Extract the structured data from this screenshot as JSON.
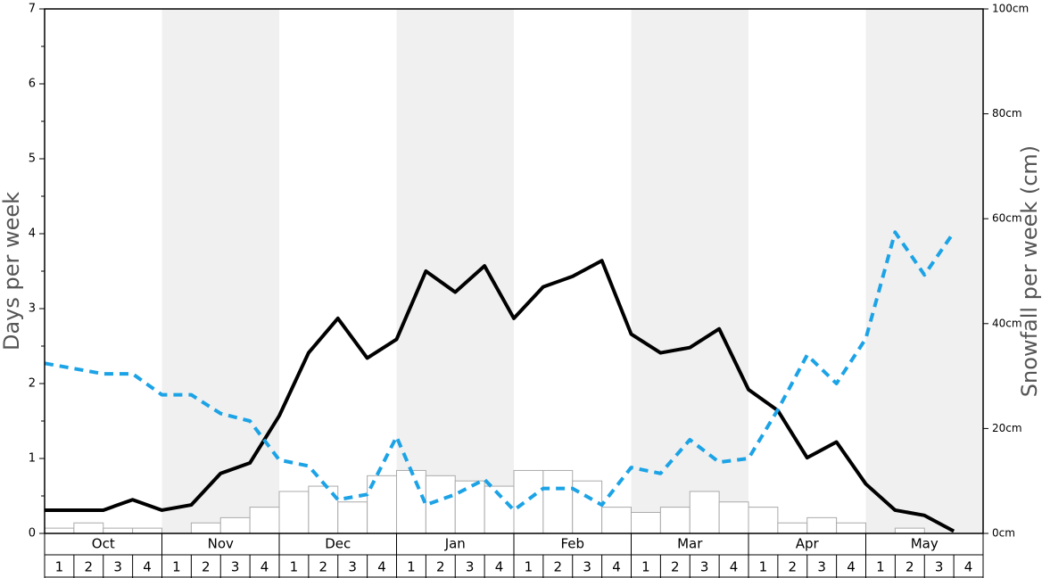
{
  "chart_data": {
    "type": "combo",
    "y_label": "Days per week",
    "y2_label": "Snowfall per week (cm)",
    "groups": [
      "Oct",
      "Nov",
      "Dec",
      "Jan",
      "Feb",
      "Mar",
      "Apr",
      "May"
    ],
    "categories": [
      1,
      2,
      3,
      4,
      1,
      2,
      3,
      4,
      1,
      2,
      3,
      4,
      1,
      2,
      3,
      4,
      1,
      2,
      3,
      4,
      1,
      2,
      3,
      4,
      1,
      2,
      3,
      4,
      1,
      2,
      3,
      4
    ],
    "ylim": [
      0,
      7
    ],
    "yticks": [
      0,
      1,
      2,
      3,
      4,
      5,
      6,
      7
    ],
    "y2lim": [
      0,
      100
    ],
    "y2ticks": [
      {
        "value": 0,
        "label": "0cm"
      },
      {
        "value": 20,
        "label": "20cm"
      },
      {
        "value": 40,
        "label": "40cm"
      },
      {
        "value": 60,
        "label": "60cm"
      },
      {
        "value": 80,
        "label": "80cm"
      },
      {
        "value": 100,
        "label": "100cm"
      }
    ],
    "series": [
      {
        "type": "bar",
        "axis": "y2",
        "color": "#ffffff",
        "values": [
          1,
          2,
          1,
          1,
          0,
          2,
          3,
          5,
          8,
          9,
          6,
          11,
          12,
          11,
          10,
          9,
          12,
          12,
          10,
          5,
          4,
          5,
          8,
          6,
          5,
          2,
          3,
          2,
          0,
          1,
          0,
          0
        ]
      },
      {
        "type": "line",
        "color": "#000000",
        "values": [
          0.31,
          0.31,
          0.31,
          0.45,
          0.31,
          0.38,
          0.8,
          0.94,
          1.57,
          2.41,
          2.87,
          2.34,
          2.59,
          3.5,
          3.22,
          3.57,
          2.87,
          3.29,
          3.43,
          3.64,
          2.66,
          2.41,
          2.48,
          2.73,
          1.92,
          1.64,
          1.01,
          1.22,
          0.66,
          0.31,
          0.24,
          0.03
        ]
      },
      {
        "type": "line",
        "dashed": true,
        "color": "#1ca3e6",
        "values": [
          2.27,
          2.2,
          2.13,
          2.13,
          1.85,
          1.85,
          1.6,
          1.5,
          0.98,
          0.9,
          0.45,
          0.52,
          1.29,
          0.38,
          0.52,
          0.72,
          0.31,
          0.6,
          0.6,
          0.38,
          0.88,
          0.8,
          1.25,
          0.95,
          1.0,
          1.65,
          2.38,
          2.0,
          2.6,
          4.02,
          3.45,
          4.02
        ]
      }
    ]
  }
}
